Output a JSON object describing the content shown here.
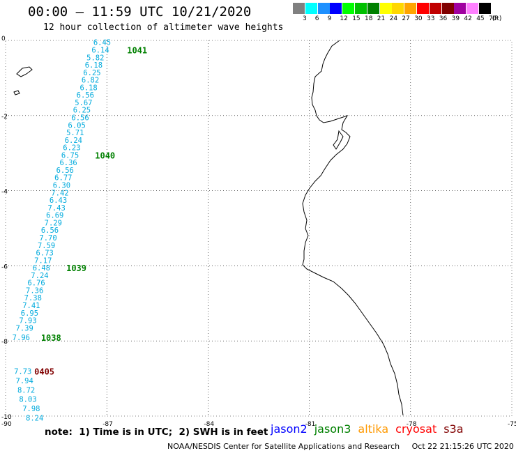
{
  "header": {
    "title": "00:00 – 11:59 UTC 10/21/2020",
    "subtitle": "12 hour collection of altimeter wave heights"
  },
  "scale": {
    "unit": "(ft)",
    "labels": [
      "3",
      "6",
      "9",
      "12",
      "15",
      "18",
      "21",
      "24",
      "27",
      "30",
      "33",
      "36",
      "39",
      "42",
      "45",
      "70"
    ],
    "colors": [
      "#808080",
      "#00ffff",
      "#1e90ff",
      "#0000ff",
      "#00ff00",
      "#00c000",
      "#008000",
      "#ffff00",
      "#ffd700",
      "#ffa500",
      "#ff0000",
      "#c00000",
      "#800000",
      "#a000a0",
      "#ff80ff",
      "#000000"
    ]
  },
  "axes": {
    "lon_labels": [
      "-90",
      "-87",
      "-84",
      "-81",
      "-78",
      "-75"
    ],
    "lat_labels": [
      "0",
      "-2",
      "-4",
      "-6",
      "-8",
      "-10"
    ],
    "lon_range": [
      -90,
      -75
    ],
    "lat_range": [
      -10,
      0
    ],
    "grid": "dotted"
  },
  "passes": [
    {
      "label": "1041",
      "color": "#008000",
      "lon": -86.4,
      "lat": -0.25
    },
    {
      "label": "1040",
      "color": "#008000",
      "lon": -87.35,
      "lat": -3.05
    },
    {
      "label": "1039",
      "color": "#008000",
      "lon": -88.2,
      "lat": -6.05
    },
    {
      "label": "1038",
      "color": "#008000",
      "lon": -88.95,
      "lat": -7.9
    },
    {
      "label": "0405",
      "color": "#800000",
      "lon": -89.15,
      "lat": -8.8
    }
  ],
  "wave_color": "#00aadd",
  "wave_heights": [
    {
      "v": "6.45",
      "lon": -87.4,
      "lat": -0.05
    },
    {
      "v": "6.14",
      "lon": -87.45,
      "lat": -0.25
    },
    {
      "v": "5.82",
      "lon": -87.6,
      "lat": -0.45
    },
    {
      "v": "6.18",
      "lon": -87.65,
      "lat": -0.65
    },
    {
      "v": "6.25",
      "lon": -87.7,
      "lat": -0.85
    },
    {
      "v": "6.82",
      "lon": -87.75,
      "lat": -1.05
    },
    {
      "v": "6.18",
      "lon": -87.8,
      "lat": -1.25
    },
    {
      "v": "6.56",
      "lon": -87.9,
      "lat": -1.45
    },
    {
      "v": "5.67",
      "lon": -87.95,
      "lat": -1.65
    },
    {
      "v": "6.25",
      "lon": -88.0,
      "lat": -1.85
    },
    {
      "v": "6.56",
      "lon": -88.05,
      "lat": -2.05
    },
    {
      "v": "6.05",
      "lon": -88.15,
      "lat": -2.25
    },
    {
      "v": "5.71",
      "lon": -88.2,
      "lat": -2.45
    },
    {
      "v": "6.24",
      "lon": -88.25,
      "lat": -2.65
    },
    {
      "v": "6.23",
      "lon": -88.3,
      "lat": -2.85
    },
    {
      "v": "6.75",
      "lon": -88.35,
      "lat": -3.05
    },
    {
      "v": "6.36",
      "lon": -88.4,
      "lat": -3.25
    },
    {
      "v": "6.56",
      "lon": -88.5,
      "lat": -3.45
    },
    {
      "v": "6.77",
      "lon": -88.55,
      "lat": -3.65
    },
    {
      "v": "6.30",
      "lon": -88.6,
      "lat": -3.85
    },
    {
      "v": "7.42",
      "lon": -88.65,
      "lat": -4.05
    },
    {
      "v": "6.43",
      "lon": -88.7,
      "lat": -4.25
    },
    {
      "v": "7.43",
      "lon": -88.75,
      "lat": -4.45
    },
    {
      "v": "6.69",
      "lon": -88.8,
      "lat": -4.65
    },
    {
      "v": "7.29",
      "lon": -88.85,
      "lat": -4.85
    },
    {
      "v": "6.56",
      "lon": -88.95,
      "lat": -5.05
    },
    {
      "v": "7.70",
      "lon": -89.0,
      "lat": -5.25
    },
    {
      "v": "7.59",
      "lon": -89.05,
      "lat": -5.45
    },
    {
      "v": "6.73",
      "lon": -89.1,
      "lat": -5.65
    },
    {
      "v": "7.17",
      "lon": -89.15,
      "lat": -5.85
    },
    {
      "v": "6.48",
      "lon": -89.2,
      "lat": -6.05
    },
    {
      "v": "7.24",
      "lon": -89.25,
      "lat": -6.25
    },
    {
      "v": "6.76",
      "lon": -89.35,
      "lat": -6.45
    },
    {
      "v": "7.36",
      "lon": -89.4,
      "lat": -6.65
    },
    {
      "v": "7.38",
      "lon": -89.45,
      "lat": -6.85
    },
    {
      "v": "7.41",
      "lon": -89.5,
      "lat": -7.05
    },
    {
      "v": "6.95",
      "lon": -89.55,
      "lat": -7.25
    },
    {
      "v": "7.93",
      "lon": -89.6,
      "lat": -7.45
    },
    {
      "v": "7.39",
      "lon": -89.7,
      "lat": -7.65
    },
    {
      "v": "7.96",
      "lon": -89.8,
      "lat": -7.9
    },
    {
      "v": "7.73",
      "lon": -89.75,
      "lat": -8.8
    },
    {
      "v": "7.94",
      "lon": -89.7,
      "lat": -9.05
    },
    {
      "v": "8.72",
      "lon": -89.65,
      "lat": -9.3
    },
    {
      "v": "8.03",
      "lon": -89.6,
      "lat": -9.55
    },
    {
      "v": "7.98",
      "lon": -89.5,
      "lat": -9.8
    },
    {
      "v": "8.24",
      "lon": -89.4,
      "lat": -10.05
    }
  ],
  "legend_note": "note:  1) Time is in UTC;  2) SWH is in feet",
  "satellites": [
    {
      "name": "jason2",
      "color": "#0000ff"
    },
    {
      "name": "jason3",
      "color": "#008000"
    },
    {
      "name": "altika",
      "color": "#ff9900"
    },
    {
      "name": "cryosat",
      "color": "#ff0000"
    },
    {
      "name": "s3a",
      "color": "#800000"
    }
  ],
  "footer": "NOAA/NESDIS Center for Satellite Applications and Research     Oct 22 21:15:26 UTC 2020"
}
